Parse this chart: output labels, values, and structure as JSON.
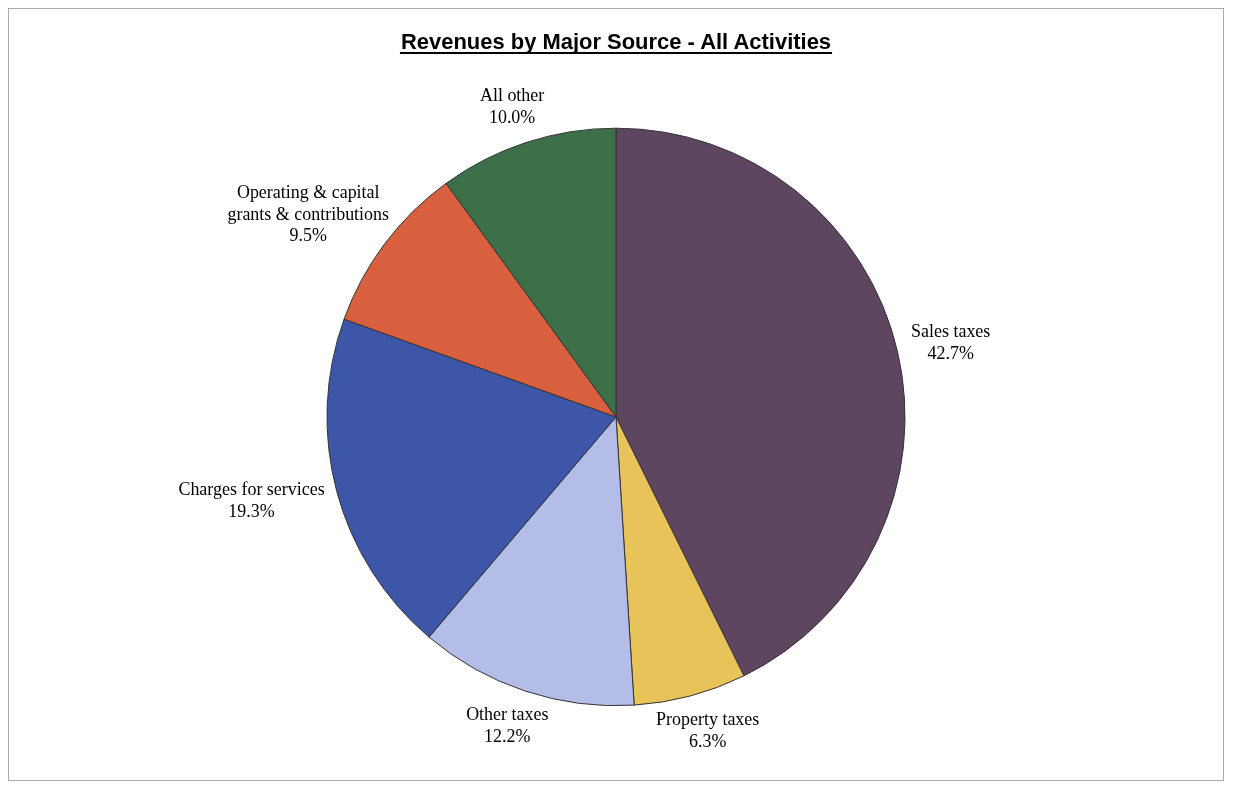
{
  "chart_data": {
    "type": "pie",
    "title": "Revenues by Major Source - All Activities",
    "categories": [
      "Sales taxes",
      "Property taxes",
      "Other taxes",
      "Charges for services",
      "Operating & capital grants & contributions",
      "All other"
    ],
    "values": [
      42.7,
      6.3,
      12.2,
      19.3,
      9.5,
      10.0
    ],
    "value_labels": [
      "42.7%",
      "6.3%",
      "12.2%",
      "19.3%",
      "9.5%",
      "10.0%"
    ],
    "colors": [
      "#5e4660",
      "#e8c35a",
      "#b4bce8",
      "#3d56a8",
      "#d9603f",
      "#3d7048"
    ],
    "legend": false
  }
}
